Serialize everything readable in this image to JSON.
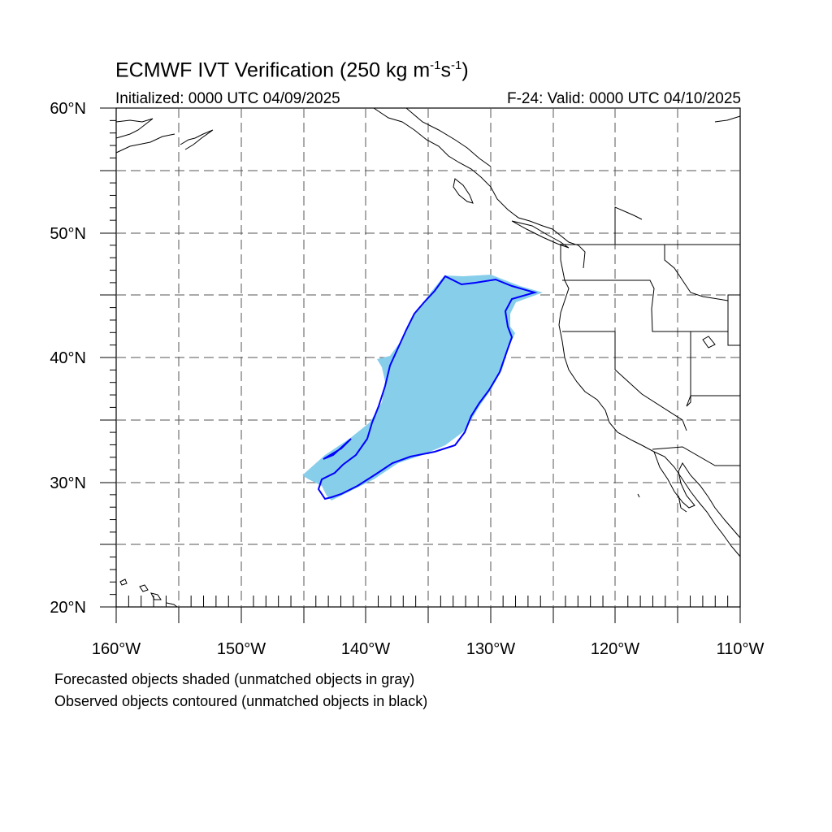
{
  "title": {
    "main": "ECMWF IVT Verification (250 kg m",
    "sup1": "-1",
    "mid": "s",
    "sup2": "-1",
    "end": ")"
  },
  "initialized": "Initialized: 0000 UTC 04/09/2025",
  "valid": "F-24: Valid: 0000 UTC 04/10/2025",
  "lat_labels": [
    "60°N",
    "50°N",
    "40°N",
    "30°N",
    "20°N"
  ],
  "lon_labels": [
    "160°W",
    "150°W",
    "140°W",
    "130°W",
    "120°W",
    "110°W"
  ],
  "caption": {
    "line1": "Forecasted objects shaded (unmatched objects in gray)",
    "line2": "Observed objects contoured (unmatched objects in black)"
  },
  "map": {
    "lon_range": [
      -160,
      -110
    ],
    "lat_range": [
      20,
      60
    ],
    "grid_interval_deg": 5,
    "forecast_fill_color": "#87CEEB",
    "observed_contour_color": "#0000FF",
    "coast_color": "#000000"
  }
}
